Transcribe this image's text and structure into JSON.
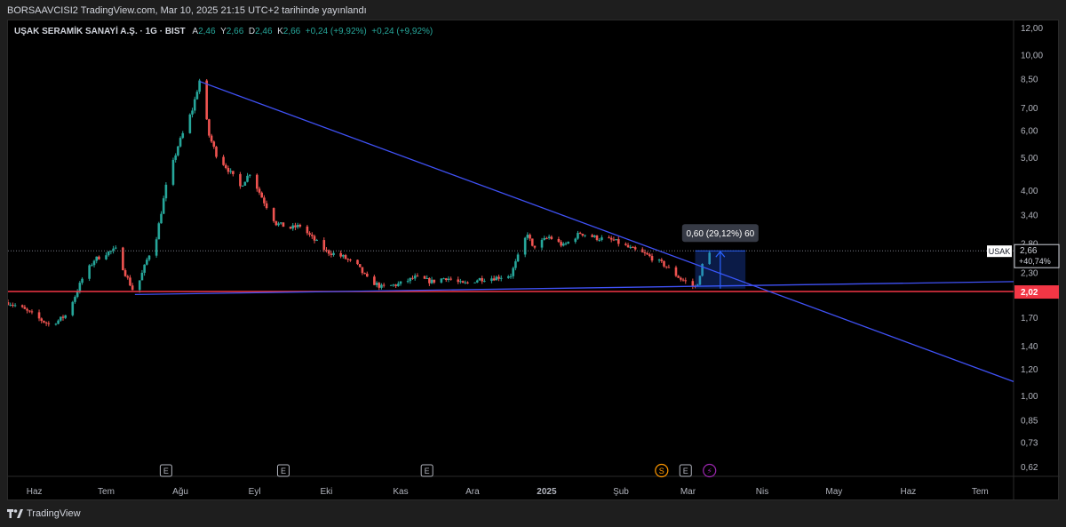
{
  "header": {
    "published": "BORSAAVCISI2 TradingView.com, Mar 10, 2025 21:15 UTC+2 tarihinde yayınlandı"
  },
  "legend": {
    "symbol_title": "UŞAK SERAMİK SANAYİ A.Ş. · 1G · BIST",
    "o_label": "A",
    "o_value": "2,46",
    "h_label": "Y",
    "h_value": "2,66",
    "l_label": "D",
    "l_value": "2,46",
    "c_label": "K",
    "c_value": "2,66",
    "change": "+0,24 (+9,92%)",
    "change2": "+0,24 (+9,92%)"
  },
  "branding": {
    "name": "TradingView"
  },
  "colors": {
    "background": "#000000",
    "up": "#26a69a",
    "down": "#ef5350",
    "trendline": "#3f51f5",
    "support": "#f23645",
    "measure": "#2962ff"
  },
  "chart_data": {
    "type": "candlestick",
    "y_scale": "log",
    "ylim": [
      0.58,
      12.6
    ],
    "y_ticks": [
      "12,00",
      "10,00",
      "8,50",
      "7,00",
      "6,00",
      "5,00",
      "4,00",
      "3,40",
      "2,80",
      "2,30",
      "1,70",
      "1,40",
      "1,20",
      "1,00",
      "0,85",
      "0,73",
      "0,62"
    ],
    "y_tick_values": [
      12.0,
      10.0,
      8.5,
      7.0,
      6.0,
      5.0,
      4.0,
      3.4,
      2.8,
      2.3,
      1.7,
      1.4,
      1.2,
      1.0,
      0.85,
      0.73,
      0.62
    ],
    "x_labels": [
      {
        "date": "2024-06-01",
        "label": "Haz"
      },
      {
        "date": "2024-07-01",
        "label": "Tem"
      },
      {
        "date": "2024-08-01",
        "label": "Ağu"
      },
      {
        "date": "2024-09-01",
        "label": "Eyl"
      },
      {
        "date": "2024-10-01",
        "label": "Eki"
      },
      {
        "date": "2024-11-01",
        "label": "Kas"
      },
      {
        "date": "2024-12-01",
        "label": "Ara"
      },
      {
        "date": "2025-01-01",
        "label": "2025",
        "bold": true
      },
      {
        "date": "2025-02-01",
        "label": "Şub"
      },
      {
        "date": "2025-03-01",
        "label": "Mar"
      },
      {
        "date": "2025-04-01",
        "label": "Nis"
      },
      {
        "date": "2025-05-01",
        "label": "May"
      },
      {
        "date": "2025-06-01",
        "label": "Haz"
      },
      {
        "date": "2025-07-01",
        "label": "Tem"
      }
    ],
    "price_path": [
      [
        "2024-05-21",
        1.88
      ],
      [
        "2024-05-27",
        1.8
      ],
      [
        "2024-06-03",
        1.68
      ],
      [
        "2024-06-07",
        1.62
      ],
      [
        "2024-06-11",
        1.66
      ],
      [
        "2024-06-14",
        1.72
      ],
      [
        "2024-06-18",
        1.96
      ],
      [
        "2024-06-21",
        2.2
      ],
      [
        "2024-06-26",
        2.5
      ],
      [
        "2024-07-01",
        2.62
      ],
      [
        "2024-07-05",
        2.68
      ],
      [
        "2024-07-09",
        2.28
      ],
      [
        "2024-07-12",
        2.05
      ],
      [
        "2024-07-15",
        2.18
      ],
      [
        "2024-07-18",
        2.5
      ],
      [
        "2024-07-22",
        2.92
      ],
      [
        "2024-07-26",
        4.1
      ],
      [
        "2024-07-31",
        5.4
      ],
      [
        "2024-08-06",
        6.9
      ],
      [
        "2024-08-09",
        8.4
      ],
      [
        "2024-08-13",
        5.8
      ],
      [
        "2024-08-16",
        5.1
      ],
      [
        "2024-08-21",
        4.6
      ],
      [
        "2024-08-26",
        4.1
      ],
      [
        "2024-08-30",
        4.5
      ],
      [
        "2024-09-05",
        3.7
      ],
      [
        "2024-09-10",
        3.2
      ],
      [
        "2024-09-16",
        3.1
      ],
      [
        "2024-09-20",
        3.15
      ],
      [
        "2024-09-25",
        2.9
      ],
      [
        "2024-10-01",
        2.65
      ],
      [
        "2024-10-08",
        2.55
      ],
      [
        "2024-10-14",
        2.4
      ],
      [
        "2024-10-18",
        2.2
      ],
      [
        "2024-10-24",
        2.08
      ],
      [
        "2024-10-31",
        2.12
      ],
      [
        "2024-11-07",
        2.22
      ],
      [
        "2024-11-14",
        2.16
      ],
      [
        "2024-11-20",
        2.22
      ],
      [
        "2024-11-27",
        2.12
      ],
      [
        "2024-12-04",
        2.2
      ],
      [
        "2024-12-11",
        2.22
      ],
      [
        "2024-12-17",
        2.26
      ],
      [
        "2024-12-19",
        2.45
      ],
      [
        "2024-12-24",
        3.0
      ],
      [
        "2024-12-26",
        2.72
      ],
      [
        "2025-01-02",
        2.92
      ],
      [
        "2025-01-08",
        2.75
      ],
      [
        "2025-01-15",
        3.0
      ],
      [
        "2025-01-22",
        2.9
      ],
      [
        "2025-01-29",
        2.85
      ],
      [
        "2025-02-05",
        2.7
      ],
      [
        "2025-02-12",
        2.58
      ],
      [
        "2025-02-19",
        2.42
      ],
      [
        "2025-02-26",
        2.2
      ],
      [
        "2025-03-04",
        2.08
      ],
      [
        "2025-03-06",
        2.22
      ],
      [
        "2025-03-07",
        2.42
      ],
      [
        "2025-03-10",
        2.66
      ]
    ],
    "trendline_upper": {
      "from": [
        "2024-08-09",
        8.35
      ],
      "to": [
        "2025-07-15",
        1.1
      ]
    },
    "trendline_lower": {
      "from": [
        "2024-07-13",
        1.98
      ],
      "to": [
        "2025-07-15",
        2.16
      ]
    },
    "support_level": 2.02,
    "support_label": "2,02",
    "current_price": 2.66,
    "current_label": "2,66",
    "current_symbol": "USAK",
    "current_change": "+40,74%",
    "measure": {
      "from_date": "2025-03-04",
      "to_date": "2025-03-25",
      "from_price": 2.06,
      "to_price": 2.66,
      "label": "0,60 (29,12%) 60"
    },
    "events": [
      {
        "date": "2024-07-26",
        "type": "E"
      },
      {
        "date": "2024-09-13",
        "type": "E"
      },
      {
        "date": "2024-11-12",
        "type": "E"
      },
      {
        "date": "2025-02-18",
        "type": "S"
      },
      {
        "date": "2025-02-28",
        "type": "E"
      },
      {
        "date": "2025-03-10",
        "type": "⚡"
      }
    ]
  }
}
